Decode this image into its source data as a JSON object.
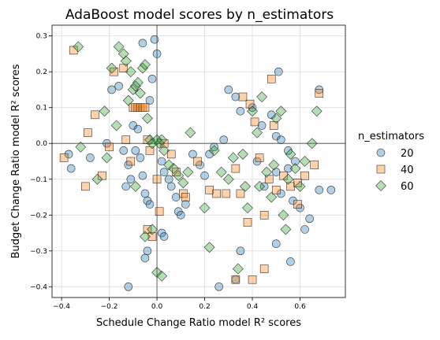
{
  "chart_data": {
    "type": "scatter",
    "title": "AdaBoost model scores by n_estimators",
    "xlabel": "Schedule Change Ratio model R² scores",
    "ylabel": "Budget Change Ratio model R² scores",
    "xlim": [
      -0.44,
      0.79
    ],
    "ylim": [
      -0.43,
      0.33
    ],
    "xticks": [
      -0.4,
      -0.2,
      0.0,
      0.2,
      0.4,
      0.6
    ],
    "yticks": [
      -0.4,
      -0.3,
      -0.2,
      -0.1,
      0.0,
      0.1,
      0.2,
      0.3
    ],
    "xtick_labels": [
      "−0.4",
      "−0.2",
      "0.0",
      "0.2",
      "0.4",
      "0.6"
    ],
    "ytick_labels": [
      "−0.4",
      "−0.3",
      "−0.2",
      "−0.1",
      "0.0",
      "0.1",
      "0.2",
      "0.3"
    ],
    "grid": true,
    "reference_lines": {
      "x": 0,
      "y": 0
    },
    "legend": {
      "title": "n_estimators",
      "placement": "right"
    },
    "series": [
      {
        "name": "20",
        "marker": "circle",
        "color": "#1f77b4",
        "points": [
          [
            -0.36,
            -0.07
          ],
          [
            -0.37,
            -0.03
          ],
          [
            -0.28,
            -0.04
          ],
          [
            -0.21,
            0.0
          ],
          [
            -0.16,
            0.16
          ],
          [
            -0.19,
            0.15
          ],
          [
            -0.14,
            -0.02
          ],
          [
            -0.12,
            -0.06
          ],
          [
            -0.11,
            -0.1
          ],
          [
            -0.13,
            -0.12
          ],
          [
            -0.1,
            0.05
          ],
          [
            -0.08,
            0.04
          ],
          [
            -0.09,
            -0.02
          ],
          [
            -0.07,
            -0.04
          ],
          [
            -0.06,
            -0.09
          ],
          [
            -0.05,
            -0.14
          ],
          [
            -0.04,
            -0.16
          ],
          [
            -0.03,
            -0.17
          ],
          [
            -0.04,
            -0.3
          ],
          [
            -0.05,
            -0.32
          ],
          [
            -0.12,
            -0.4
          ],
          [
            -0.06,
            0.28
          ],
          [
            -0.01,
            0.29
          ],
          [
            0.0,
            0.25
          ],
          [
            -0.02,
            0.18
          ],
          [
            -0.03,
            0.12
          ],
          [
            0.02,
            -0.05
          ],
          [
            0.03,
            -0.08
          ],
          [
            0.05,
            -0.1
          ],
          [
            0.06,
            -0.12
          ],
          [
            0.08,
            -0.15
          ],
          [
            0.09,
            -0.19
          ],
          [
            0.1,
            -0.2
          ],
          [
            0.12,
            -0.17
          ],
          [
            0.02,
            -0.25
          ],
          [
            0.03,
            -0.26
          ],
          [
            0.15,
            -0.03
          ],
          [
            0.18,
            -0.06
          ],
          [
            0.2,
            -0.09
          ],
          [
            0.22,
            -0.03
          ],
          [
            0.24,
            -0.01
          ],
          [
            0.28,
            0.01
          ],
          [
            0.3,
            0.15
          ],
          [
            0.33,
            0.13
          ],
          [
            0.35,
            0.09
          ],
          [
            0.4,
            0.1
          ],
          [
            0.44,
            0.05
          ],
          [
            0.48,
            0.08
          ],
          [
            0.5,
            0.02
          ],
          [
            0.52,
            0.01
          ],
          [
            0.55,
            -0.02
          ],
          [
            0.58,
            -0.05
          ],
          [
            0.5,
            -0.08
          ],
          [
            0.45,
            -0.12
          ],
          [
            0.52,
            -0.14
          ],
          [
            0.57,
            -0.16
          ],
          [
            0.6,
            -0.18
          ],
          [
            0.64,
            -0.21
          ],
          [
            0.68,
            -0.13
          ],
          [
            0.73,
            -0.13
          ],
          [
            0.62,
            -0.24
          ],
          [
            0.5,
            -0.28
          ],
          [
            0.56,
            -0.33
          ],
          [
            0.35,
            -0.3
          ],
          [
            0.33,
            -0.38
          ],
          [
            0.26,
            -0.4
          ],
          [
            0.51,
            0.2
          ],
          [
            0.68,
            0.15
          ],
          [
            0.55,
            -0.07
          ],
          [
            0.42,
            -0.05
          ]
        ]
      },
      {
        "name": "40",
        "marker": "square",
        "color": "#ff7f0e",
        "points": [
          [
            -0.39,
            -0.04
          ],
          [
            -0.35,
            0.26
          ],
          [
            -0.3,
            -0.12
          ],
          [
            -0.29,
            0.03
          ],
          [
            -0.26,
            0.08
          ],
          [
            -0.23,
            -0.09
          ],
          [
            -0.2,
            -0.01
          ],
          [
            -0.18,
            0.2
          ],
          [
            -0.14,
            0.21
          ],
          [
            -0.13,
            0.01
          ],
          [
            -0.11,
            -0.05
          ],
          [
            -0.1,
            0.1
          ],
          [
            -0.09,
            0.1
          ],
          [
            -0.08,
            0.1
          ],
          [
            -0.07,
            0.1
          ],
          [
            -0.06,
            0.1
          ],
          [
            -0.05,
            0.1
          ],
          [
            -0.04,
            0.01
          ],
          [
            -0.03,
            -0.02
          ],
          [
            -0.04,
            -0.24
          ],
          [
            -0.02,
            -0.26
          ],
          [
            0.0,
            -0.1
          ],
          [
            0.01,
            -0.19
          ],
          [
            0.03,
            0.0
          ],
          [
            0.06,
            -0.03
          ],
          [
            0.08,
            -0.08
          ],
          [
            0.11,
            -0.14
          ],
          [
            0.12,
            -0.15
          ],
          [
            0.17,
            -0.05
          ],
          [
            0.22,
            -0.13
          ],
          [
            0.25,
            -0.14
          ],
          [
            0.29,
            -0.14
          ],
          [
            0.33,
            -0.07
          ],
          [
            0.35,
            -0.14
          ],
          [
            0.36,
            0.13
          ],
          [
            0.38,
            -0.22
          ],
          [
            0.39,
            0.11
          ],
          [
            0.41,
            0.06
          ],
          [
            0.43,
            -0.04
          ],
          [
            0.45,
            -0.2
          ],
          [
            0.47,
            -0.1
          ],
          [
            0.49,
            0.05
          ],
          [
            0.5,
            -0.13
          ],
          [
            0.53,
            -0.09
          ],
          [
            0.56,
            -0.12
          ],
          [
            0.59,
            -0.17
          ],
          [
            0.62,
            -0.09
          ],
          [
            0.68,
            0.14
          ],
          [
            0.48,
            0.18
          ],
          [
            0.4,
            -0.38
          ],
          [
            0.45,
            -0.35
          ],
          [
            0.33,
            -0.38
          ],
          [
            0.66,
            -0.06
          ],
          [
            0.59,
            -0.11
          ]
        ]
      },
      {
        "name": "60",
        "marker": "diamond",
        "color": "#2ca02c",
        "points": [
          [
            -0.33,
            0.27
          ],
          [
            -0.32,
            -0.01
          ],
          [
            -0.25,
            -0.1
          ],
          [
            -0.22,
            0.09
          ],
          [
            -0.19,
            0.21
          ],
          [
            -0.17,
            0.05
          ],
          [
            -0.16,
            0.27
          ],
          [
            -0.14,
            0.25
          ],
          [
            -0.13,
            0.23
          ],
          [
            -0.12,
            0.12
          ],
          [
            -0.11,
            0.2
          ],
          [
            -0.1,
            0.15
          ],
          [
            -0.09,
            0.16
          ],
          [
            -0.08,
            0.17
          ],
          [
            -0.07,
            0.14
          ],
          [
            -0.06,
            0.21
          ],
          [
            -0.05,
            0.22
          ],
          [
            -0.04,
            0.07
          ],
          [
            -0.03,
            0.01
          ],
          [
            -0.02,
            0.0
          ],
          [
            0.0,
            0.01
          ],
          [
            0.01,
            0.0
          ],
          [
            0.02,
            0.01
          ],
          [
            0.03,
            -0.02
          ],
          [
            0.05,
            -0.06
          ],
          [
            0.07,
            -0.07
          ],
          [
            0.09,
            -0.09
          ],
          [
            0.11,
            -0.11
          ],
          [
            -0.05,
            -0.26
          ],
          [
            -0.02,
            -0.24
          ],
          [
            0.0,
            -0.36
          ],
          [
            0.02,
            -0.37
          ],
          [
            0.2,
            -0.18
          ],
          [
            0.22,
            -0.29
          ],
          [
            0.24,
            -0.02
          ],
          [
            0.27,
            -0.08
          ],
          [
            0.3,
            -0.1
          ],
          [
            0.32,
            -0.04
          ],
          [
            0.34,
            -0.35
          ],
          [
            0.37,
            -0.12
          ],
          [
            0.4,
            0.09
          ],
          [
            0.42,
            0.03
          ],
          [
            0.44,
            0.13
          ],
          [
            0.46,
            -0.08
          ],
          [
            0.48,
            -0.15
          ],
          [
            0.5,
            0.07
          ],
          [
            0.52,
            0.09
          ],
          [
            0.53,
            -0.2
          ],
          [
            0.54,
            -0.24
          ],
          [
            0.56,
            -0.03
          ],
          [
            0.58,
            -0.07
          ],
          [
            0.6,
            -0.12
          ],
          [
            0.62,
            -0.05
          ],
          [
            0.65,
            0.0
          ],
          [
            0.67,
            0.09
          ],
          [
            0.38,
            -0.18
          ],
          [
            0.43,
            -0.12
          ],
          [
            0.49,
            -0.06
          ],
          [
            0.55,
            -0.1
          ],
          [
            0.14,
            0.03
          ],
          [
            -0.21,
            -0.04
          ],
          [
            -0.09,
            -0.12
          ],
          [
            0.13,
            -0.08
          ],
          [
            0.36,
            -0.03
          ]
        ]
      }
    ]
  }
}
